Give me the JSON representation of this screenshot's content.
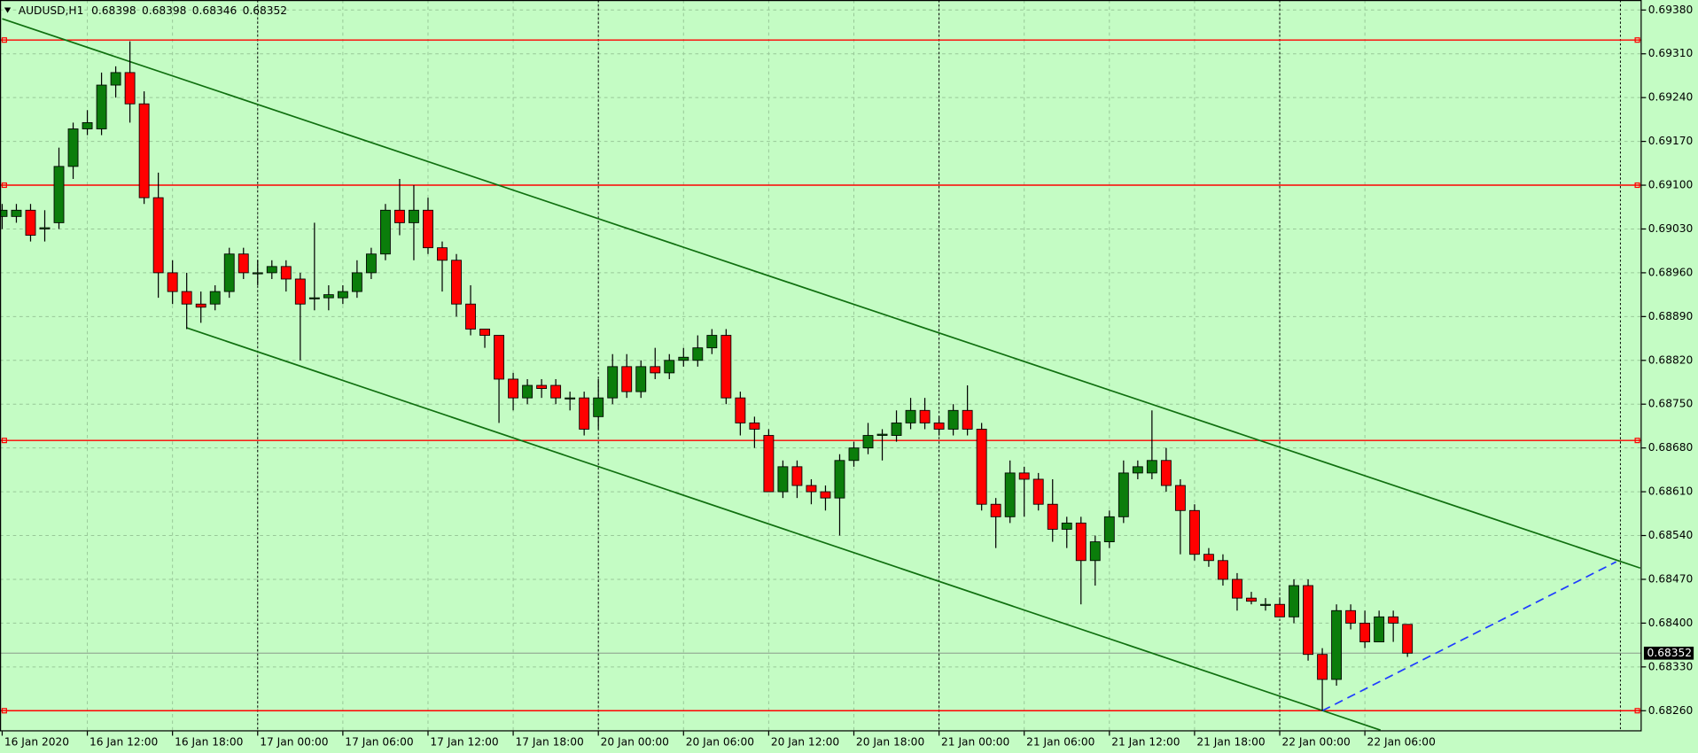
{
  "header": {
    "symbol": "AUDUSD,H1",
    "ohlc": [
      0.68398,
      0.68398,
      0.68346,
      0.68352
    ]
  },
  "chart_data": {
    "type": "candlestick",
    "categories": [
      "16 Jan 2020",
      null,
      null,
      null,
      null,
      null,
      "16 Jan 12:00",
      null,
      null,
      null,
      null,
      null,
      "16 Jan 18:00",
      null,
      null,
      null,
      null,
      null,
      "17 Jan 00:00",
      null,
      null,
      null,
      null,
      null,
      "17 Jan 06:00",
      null,
      null,
      null,
      null,
      null,
      "17 Jan 12:00",
      null,
      null,
      null,
      null,
      null,
      "17 Jan 18:00",
      null,
      null,
      null,
      null,
      null,
      "20 Jan 00:00",
      null,
      null,
      null,
      null,
      null,
      "20 Jan 06:00",
      null,
      null,
      null,
      null,
      null,
      "20 Jan 12:00",
      null,
      null,
      null,
      null,
      null,
      "20 Jan 18:00",
      null,
      null,
      null,
      null,
      null,
      "21 Jan 00:00",
      null,
      null,
      null,
      null,
      null,
      "21 Jan 06:00",
      null,
      null,
      null,
      null,
      null,
      "21 Jan 12:00",
      null,
      null,
      null,
      null,
      null,
      "21 Jan 18:00",
      null,
      null,
      null,
      null,
      null,
      "22 Jan 00:00",
      null,
      null,
      null,
      null,
      null,
      "22 Jan 06:00",
      null,
      null,
      null
    ],
    "open": [
      0.6905,
      0.6905,
      0.6906,
      0.6903,
      0.6904,
      0.6913,
      0.6919,
      0.6919,
      0.6926,
      0.6928,
      0.6923,
      0.6908,
      0.6896,
      0.6893,
      0.6891,
      0.6891,
      0.6893,
      0.6899,
      0.6896,
      0.6896,
      0.6897,
      0.6895,
      0.6892,
      0.6892,
      0.6892,
      0.6893,
      0.6896,
      0.6899,
      0.6906,
      0.6904,
      0.6906,
      0.69,
      0.6898,
      0.6891,
      0.6887,
      0.6886,
      0.6879,
      0.6876,
      0.6878,
      0.6878,
      0.6876,
      0.6876,
      0.6873,
      0.6876,
      0.6881,
      0.6877,
      0.6881,
      0.688,
      0.6882,
      0.6882,
      0.6884,
      0.6886,
      0.6876,
      0.6872,
      0.687,
      0.6861,
      0.6865,
      0.6862,
      0.6861,
      0.686,
      0.6866,
      0.6868,
      0.687,
      0.687,
      0.6872,
      0.6874,
      0.6872,
      0.6871,
      0.6874,
      0.6871,
      0.6859,
      0.6857,
      0.6864,
      0.6863,
      0.6859,
      0.6855,
      0.6856,
      0.685,
      0.6853,
      0.6857,
      0.6864,
      0.6864,
      0.6866,
      0.6862,
      0.6858,
      0.6851,
      0.685,
      0.6847,
      0.6844,
      0.6843,
      0.6843,
      0.6841,
      0.6846,
      0.6835,
      0.6831,
      0.6842,
      0.684,
      0.6837,
      0.6841,
      0.68398
    ],
    "high": [
      0.6907,
      0.6907,
      0.6907,
      0.6906,
      0.6916,
      0.692,
      0.6922,
      0.6928,
      0.6929,
      0.6933,
      0.6925,
      0.6912,
      0.6898,
      0.6896,
      0.6893,
      0.6894,
      0.69,
      0.69,
      0.6898,
      0.6898,
      0.6898,
      0.6896,
      0.6904,
      0.6894,
      0.6894,
      0.6898,
      0.69,
      0.6907,
      0.6911,
      0.691,
      0.6908,
      0.6901,
      0.6899,
      0.6894,
      0.6887,
      0.6886,
      0.688,
      0.6879,
      0.6879,
      0.6879,
      0.6877,
      0.6877,
      0.6879,
      0.6883,
      0.6883,
      0.6882,
      0.6884,
      0.6883,
      0.6884,
      0.6886,
      0.6887,
      0.6887,
      0.6877,
      0.6873,
      0.6871,
      0.6866,
      0.6866,
      0.6863,
      0.6862,
      0.6867,
      0.6869,
      0.6872,
      0.6871,
      0.6874,
      0.6876,
      0.6876,
      0.6873,
      0.6875,
      0.6878,
      0.6872,
      0.686,
      0.6866,
      0.6865,
      0.6864,
      0.6863,
      0.6857,
      0.6857,
      0.6854,
      0.6858,
      0.6866,
      0.6866,
      0.6874,
      0.6868,
      0.6863,
      0.6859,
      0.6852,
      0.6851,
      0.6848,
      0.6845,
      0.6844,
      0.6844,
      0.6847,
      0.6847,
      0.6836,
      0.6843,
      0.6843,
      0.6842,
      0.6842,
      0.6842,
      0.68398
    ],
    "low": [
      0.6903,
      0.6904,
      0.6901,
      0.6901,
      0.6903,
      0.6911,
      0.6918,
      0.6918,
      0.6924,
      0.692,
      0.6907,
      0.6892,
      0.6891,
      0.6887,
      0.6888,
      0.689,
      0.6892,
      0.6895,
      0.6894,
      0.6895,
      0.6893,
      0.6882,
      0.689,
      0.689,
      0.6891,
      0.6892,
      0.6895,
      0.6898,
      0.6902,
      0.6898,
      0.6899,
      0.6893,
      0.6889,
      0.6886,
      0.6884,
      0.6872,
      0.6874,
      0.6875,
      0.6876,
      0.6875,
      0.6874,
      0.687,
      0.6871,
      0.6875,
      0.6876,
      0.6876,
      0.6879,
      0.6879,
      0.6881,
      0.6881,
      0.6883,
      0.6875,
      0.687,
      0.6868,
      0.6861,
      0.686,
      0.686,
      0.6859,
      0.6858,
      0.6854,
      0.6865,
      0.6867,
      0.6866,
      0.6869,
      0.6871,
      0.6871,
      0.687,
      0.687,
      0.687,
      0.6858,
      0.6852,
      0.6856,
      0.6857,
      0.6858,
      0.6853,
      0.6852,
      0.6843,
      0.6846,
      0.6852,
      0.6856,
      0.6863,
      0.6863,
      0.6861,
      0.6851,
      0.685,
      0.6849,
      0.6846,
      0.6842,
      0.6843,
      0.6842,
      0.6841,
      0.684,
      0.6834,
      0.6826,
      0.683,
      0.6839,
      0.6836,
      0.6837,
      0.6837,
      0.68346
    ],
    "close": [
      0.6906,
      0.6906,
      0.6902,
      0.69032,
      0.6913,
      0.6919,
      0.692,
      0.6926,
      0.6928,
      0.6923,
      0.6908,
      0.6896,
      0.6893,
      0.6891,
      0.68905,
      0.6893,
      0.6899,
      0.6896,
      0.6896,
      0.6897,
      0.6895,
      0.6891,
      0.6892,
      0.68925,
      0.6893,
      0.6896,
      0.6899,
      0.6906,
      0.6904,
      0.6906,
      0.69,
      0.6898,
      0.6891,
      0.6887,
      0.6886,
      0.6879,
      0.6876,
      0.6878,
      0.68775,
      0.6876,
      0.6876,
      0.6871,
      0.6876,
      0.6881,
      0.6877,
      0.6881,
      0.688,
      0.6882,
      0.68825,
      0.6884,
      0.6886,
      0.6876,
      0.6872,
      0.6871,
      0.6861,
      0.6865,
      0.6862,
      0.6861,
      0.686,
      0.6866,
      0.6868,
      0.687,
      0.68702,
      0.6872,
      0.6874,
      0.6872,
      0.6871,
      0.6874,
      0.6871,
      0.6859,
      0.6857,
      0.6864,
      0.6863,
      0.6859,
      0.6855,
      0.6856,
      0.685,
      0.6853,
      0.6857,
      0.6864,
      0.6865,
      0.6866,
      0.6862,
      0.6858,
      0.6851,
      0.685,
      0.6847,
      0.6844,
      0.68435,
      0.6843,
      0.6841,
      0.6846,
      0.6835,
      0.6831,
      0.6842,
      0.684,
      0.6837,
      0.6841,
      0.684,
      0.68352
    ],
    "up_color": "#0b7d0b",
    "down_color": "#ff0000",
    "xlim": [
      -0.153,
      115.5
    ],
    "ylim": [
      0.68227,
      0.69396
    ],
    "yticks": [
      {
        "value": 0.6938,
        "label": "0.69380"
      },
      {
        "value": 0.6931,
        "label": "0.69310"
      },
      {
        "value": 0.6924,
        "label": "0.69240"
      },
      {
        "value": 0.6917,
        "label": "0.69170"
      },
      {
        "value": 0.691,
        "label": "0.69100"
      },
      {
        "value": 0.6903,
        "label": "0.69030"
      },
      {
        "value": 0.6896,
        "label": "0.68960"
      },
      {
        "value": 0.6889,
        "label": "0.68890"
      },
      {
        "value": 0.6882,
        "label": "0.68820"
      },
      {
        "value": 0.6875,
        "label": "0.68750"
      },
      {
        "value": 0.6868,
        "label": "0.68680"
      },
      {
        "value": 0.6861,
        "label": "0.68610"
      },
      {
        "value": 0.6854,
        "label": "0.68540"
      },
      {
        "value": 0.6847,
        "label": "0.68470"
      },
      {
        "value": 0.684,
        "label": "0.68400"
      },
      {
        "value": 0.6833,
        "label": "0.68330"
      },
      {
        "value": 0.6826,
        "label": "0.68260"
      }
    ],
    "grid": true,
    "separators": [
      18,
      42,
      66,
      90,
      114
    ],
    "hlines": {
      "color": "#ff0000",
      "values": [
        0.69332,
        0.691,
        0.68692,
        0.6826
      ]
    },
    "trendlines": [
      {
        "color": "#107010",
        "dashed": false,
        "x": [
          0,
          115.4
        ],
        "y": [
          0.69366,
          0.68488
        ]
      },
      {
        "color": "#107010",
        "dashed": false,
        "x": [
          13,
          97.1
        ],
        "y": [
          0.68872,
          0.68229
        ]
      },
      {
        "color": "#1e3cff",
        "dashed": true,
        "x": [
          93,
          113.7
        ],
        "y": [
          0.6826,
          0.68498
        ]
      }
    ],
    "last_price": 0.68352
  }
}
